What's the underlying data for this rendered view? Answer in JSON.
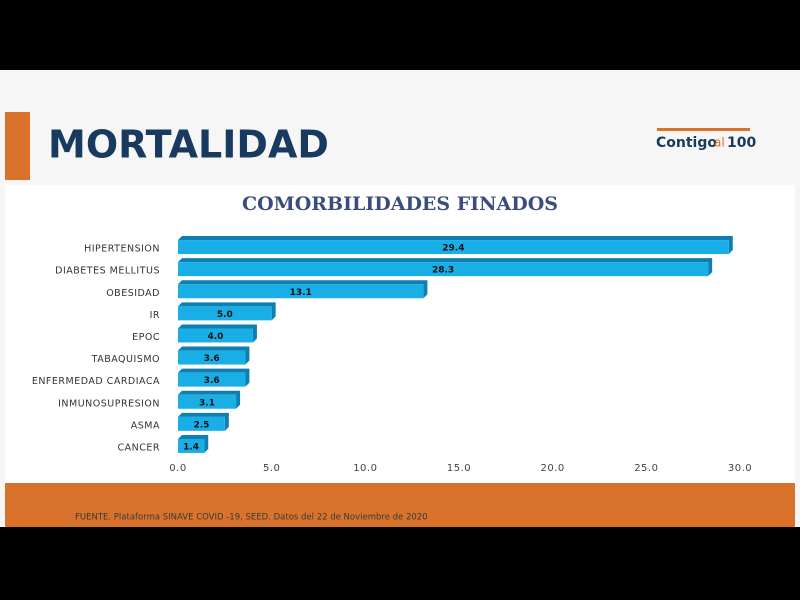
{
  "header": {
    "title": "MORTALIDAD"
  },
  "logo": [
    "Contigo",
    "al",
    "100"
  ],
  "footer": {
    "source": "FUENTE. Plataforma SINAVE COVID -19, SEED. Datos del 22 de Noviembre de 2020"
  },
  "chart_data": {
    "type": "bar",
    "orientation": "horizontal",
    "title": "COMORBILIDADES FINADOS",
    "categories": [
      "HIPERTENSION",
      "DIABETES MELLITUS",
      "OBESIDAD",
      "IR",
      "EPOC",
      "TABAQUISMO",
      "ENFERMEDAD CARDIACA",
      "INMUNOSUPRESION",
      "ASMA",
      "CANCER"
    ],
    "values": [
      29.4,
      28.3,
      13.1,
      5.0,
      4.0,
      3.6,
      3.6,
      3.1,
      2.5,
      1.4
    ],
    "value_labels": [
      "29.4",
      "28.3",
      "13.1",
      "5.0",
      "4.0",
      "3.6",
      "3.6",
      "3.1",
      "2.5",
      "1.4"
    ],
    "color": "#1aaee6",
    "xlim": [
      0,
      30
    ],
    "xticks": [
      {
        "value": 0,
        "label": "0.0"
      },
      {
        "value": 5,
        "label": "5.0"
      },
      {
        "value": 10,
        "label": "10.0"
      },
      {
        "value": 15,
        "label": "15.0"
      },
      {
        "value": 20,
        "label": "20.0"
      },
      {
        "value": 25,
        "label": "25.0"
      },
      {
        "value": 30,
        "label": "30.0"
      }
    ],
    "grid": false
  }
}
